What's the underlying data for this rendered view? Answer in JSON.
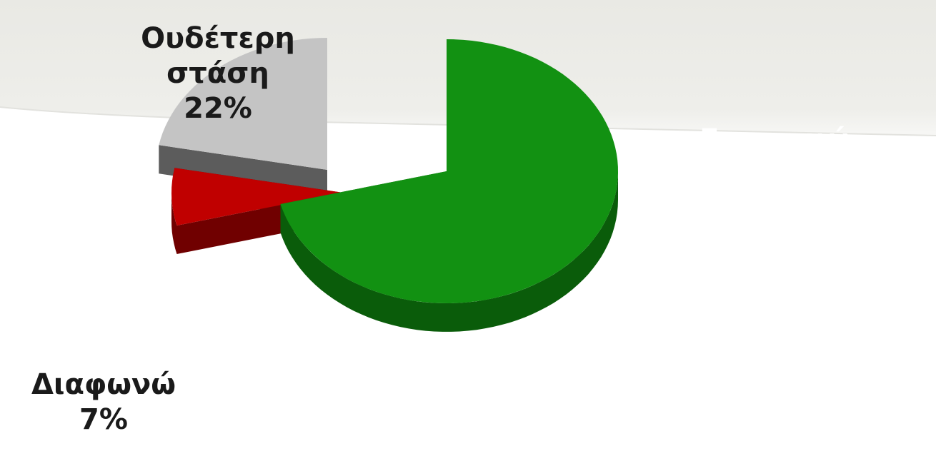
{
  "chart_data": {
    "type": "pie",
    "style": "3d-exploded",
    "title": "",
    "slices": [
      {
        "label": "Συμφωνώ",
        "value": 71,
        "value_label": "71%",
        "color": "#129112",
        "side_color": "#0a5c0a"
      },
      {
        "label": "Διαφωνώ",
        "value": 7,
        "value_label": "7%",
        "color": "#c00000",
        "side_color": "#700000"
      },
      {
        "label": "Ουδέτερη στάση",
        "label_lines": [
          "Ουδέτερη",
          "στάση"
        ],
        "value": 22,
        "value_label": "22%",
        "color": "#c4c4c4",
        "side_color": "#5c5c5c"
      }
    ],
    "legend": "none"
  }
}
